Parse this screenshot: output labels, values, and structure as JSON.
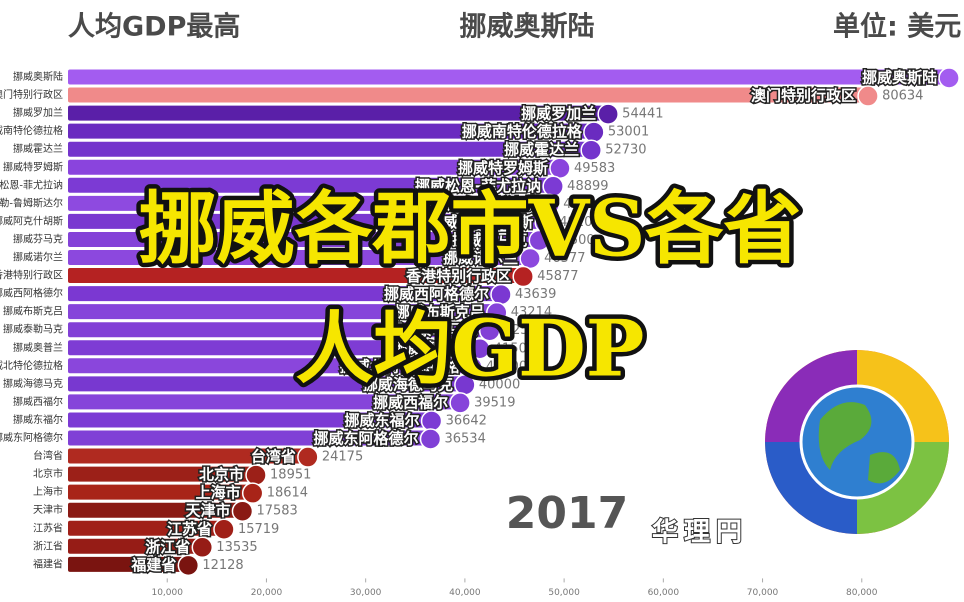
{
  "chart_data": {
    "type": "bar",
    "orientation": "horizontal",
    "title": "人均GDP最高",
    "leader": "挪威奥斯陆",
    "unit": "单位: 美元",
    "year": "2017",
    "overlay": [
      "挪威各郡市VS各省",
      "人均GDP"
    ],
    "watermark": "华理円",
    "categories": [
      "挪威奥斯陆",
      "澳门特别行政区",
      "挪威罗加兰",
      "挪威南特伦德拉格",
      "挪威霍达兰",
      "挪威特罗姆斯",
      "挪威松恩-菲尤拉讷",
      "挪威默勒-鲁姆斯达尔",
      "挪威阿克什胡斯",
      "挪威芬马克",
      "挪威诺尔兰",
      "香港特别行政区",
      "挪威西阿格德尔",
      "挪威布斯克吕",
      "挪威泰勒马克",
      "挪威奥普兰",
      "挪威北特伦德拉格",
      "挪威海德马克",
      "挪威西福尔",
      "挪威东福尔",
      "挪威东阿格德尔",
      "台湾省",
      "北京市",
      "上海市",
      "天津市",
      "江苏省",
      "浙江省",
      "福建省"
    ],
    "values": [
      88800,
      80634,
      54441,
      53001,
      52730,
      49583,
      48899,
      48500,
      48100,
      47500,
      46577,
      45877,
      43639,
      43214,
      42500,
      41500,
      40700,
      40000,
      39519,
      36642,
      36534,
      24175,
      18951,
      18614,
      17583,
      15719,
      13535,
      12128
    ],
    "colors": [
      "#a35cf0",
      "#f08a8a",
      "#5a1fa8",
      "#6a2bc0",
      "#7434cc",
      "#8a44dd",
      "#7c3ad4",
      "#8e4ae0",
      "#7a38d0",
      "#8442d8",
      "#8c48de",
      "#b52222",
      "#7b38d2",
      "#8644da",
      "#8240d6",
      "#7e3cd4",
      "#8a46dc",
      "#7838d0",
      "#8644da",
      "#7c3ad4",
      "#8040d6",
      "#b02a20",
      "#9c2018",
      "#a82418",
      "#8a1a14",
      "#a02018",
      "#961c16",
      "#7a1410"
    ],
    "xlim": [
      0,
      90000
    ],
    "xticks": [
      {
        "value": 10000,
        "label": "10,000"
      },
      {
        "value": 20000,
        "label": "20,000"
      },
      {
        "value": 30000,
        "label": "30,000"
      },
      {
        "value": 40000,
        "label": "40,000"
      },
      {
        "value": 50000,
        "label": "50,000"
      },
      {
        "value": 60000,
        "label": "60,000"
      },
      {
        "value": 70000,
        "label": "70,000"
      },
      {
        "value": 80000,
        "label": "80,000"
      }
    ]
  }
}
